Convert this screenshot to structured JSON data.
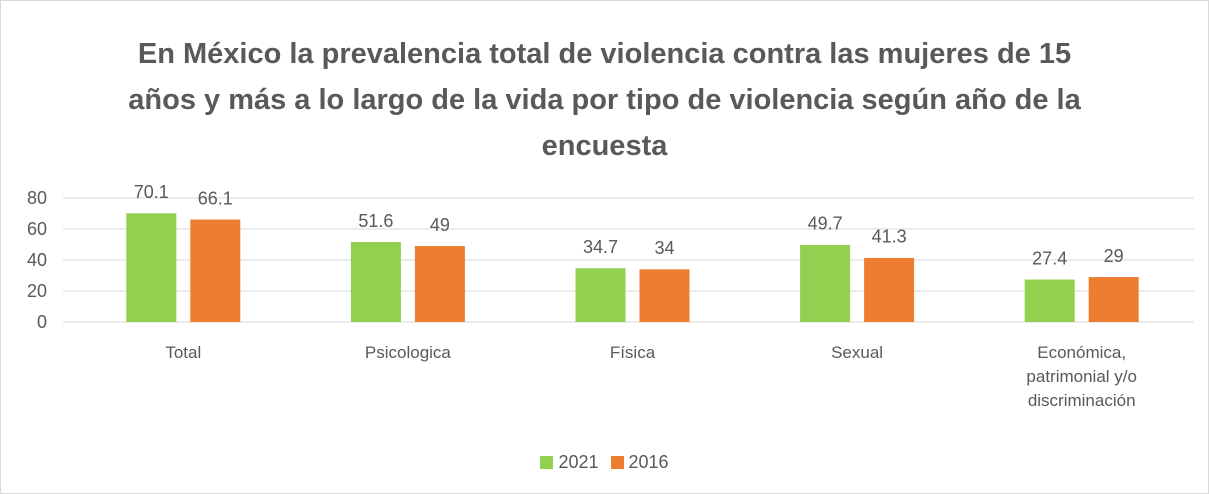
{
  "chart_data": {
    "type": "bar",
    "title": "En México la prevalencia total de violencia contra las mujeres de 15 años y más a lo largo de la vida por tipo de violencia según año de la encuesta",
    "categories": [
      "Total",
      "Psicologica",
      "Física",
      "Sexual",
      "Económica, patrimonial y/o discriminación"
    ],
    "series": [
      {
        "name": "2021",
        "color": "#92d050",
        "values": [
          70.1,
          51.6,
          34.7,
          49.7,
          27.4
        ]
      },
      {
        "name": "2016",
        "color": "#ed7d31",
        "values": [
          66.1,
          49,
          34,
          41.3,
          29
        ]
      }
    ],
    "ylim": [
      0,
      80
    ],
    "yticks": [
      0,
      20,
      40,
      60,
      80
    ],
    "grid": true,
    "legend": "bottom"
  }
}
